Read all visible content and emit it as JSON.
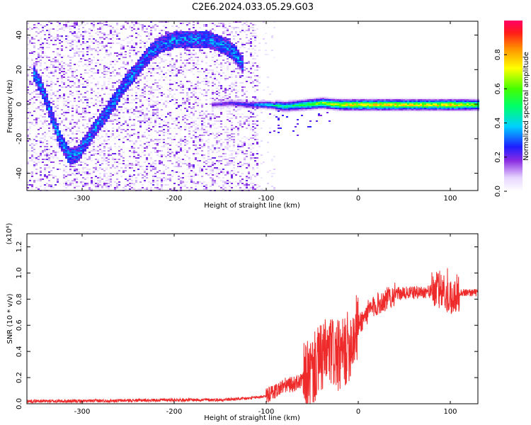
{
  "figure_title": "C2E6.2024.033.05.29.G03",
  "chart_data": [
    {
      "type": "heatmap",
      "xlabel": "Height of straight line (km)",
      "ylabel": "Frequency (Hz)",
      "xlim": [
        -360,
        130
      ],
      "ylim": [
        -50,
        48
      ],
      "x_ticks": [
        -300,
        -200,
        -100,
        0,
        100
      ],
      "y_ticks": [
        -40,
        -20,
        0,
        20,
        40
      ],
      "colorbar": {
        "label": "Normalized spectral amplitude",
        "range": [
          0,
          1
        ],
        "ticks": [
          "0.0",
          "0.2",
          "0.4",
          "0.6",
          "0.8"
        ],
        "colormap": [
          "#ffffff",
          "#c7a4ff",
          "#7b00ff",
          "#0000ff",
          "#00e5ff",
          "#00ff00",
          "#ffff00",
          "#ff8000",
          "#ff0000",
          "#ff0066"
        ]
      },
      "ridge_curve": {
        "x": [
          -355,
          -345,
          -335,
          -325,
          -315,
          -305,
          -295,
          -285,
          -275,
          -265,
          -255,
          -245,
          -235,
          -225,
          -215,
          -205,
          -195,
          -185,
          -175,
          -165,
          -155,
          -145,
          -135,
          -125
        ],
        "y": [
          20,
          10,
          -5,
          -20,
          -30,
          -28,
          -20,
          -12,
          -5,
          3,
          12,
          18,
          25,
          31,
          35,
          37,
          38,
          38,
          38,
          38,
          36,
          34,
          30,
          22
        ]
      },
      "center_band": {
        "x": [
          -160,
          -140,
          -120,
          -100,
          -80,
          -60,
          -40,
          -20,
          0,
          20,
          40,
          60,
          80,
          100,
          120,
          130
        ],
        "y": [
          0,
          1,
          0,
          0,
          -1,
          0,
          1,
          0,
          0,
          0,
          0,
          0,
          0,
          0,
          0,
          0
        ],
        "amplitude": [
          0.2,
          0.25,
          0.3,
          0.45,
          0.5,
          0.6,
          0.7,
          0.8,
          0.85,
          0.85,
          0.85,
          0.8,
          0.8,
          0.85,
          0.75,
          0.7
        ]
      }
    },
    {
      "type": "line",
      "xlabel": "Height of straight line (km)",
      "ylabel": "SNR (10 * v/v)",
      "y_multiplier": "(x10⁴)",
      "xlim": [
        -360,
        130
      ],
      "ylim": [
        0,
        1.3
      ],
      "x_ticks": [
        -300,
        -200,
        -100,
        0,
        100
      ],
      "y_ticks": [
        "0.0",
        "0.2",
        "0.4",
        "0.6",
        "0.8",
        "1.0",
        "1.2"
      ],
      "color": "#ee2a2a",
      "series": [
        {
          "x": [
            -360,
            -300,
            -200,
            -150,
            -120,
            -100,
            -90,
            -80,
            -70,
            -60,
            -50,
            -40,
            -30,
            -20,
            -10,
            0,
            10,
            20,
            30,
            40,
            60,
            80,
            90,
            100,
            110,
            130
          ],
          "values": [
            0.02,
            0.02,
            0.03,
            0.03,
            0.04,
            0.06,
            0.1,
            0.14,
            0.15,
            0.18,
            0.25,
            0.35,
            0.4,
            0.35,
            0.45,
            0.6,
            0.7,
            0.76,
            0.8,
            0.84,
            0.85,
            0.86,
            0.88,
            0.82,
            0.85,
            0.85
          ]
        }
      ]
    }
  ]
}
